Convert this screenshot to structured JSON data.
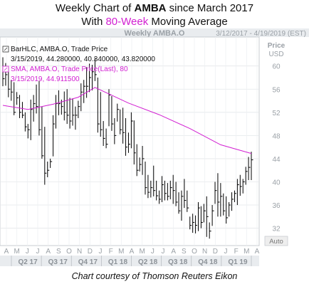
{
  "title": {
    "line1_prefix": "Weekly Chart of ",
    "ticker": "AMBA",
    "line1_suffix": " since March 2017",
    "line2_prefix": "With ",
    "line2_accent": "80-Week",
    "line2_suffix": " Moving Average"
  },
  "caption": "Chart courtesy of Thomson Reuters Eikon",
  "colors": {
    "accent": "#d21fd2",
    "bars": "#000000",
    "panel_header": "#e9ecef",
    "label_text": "#9aa0a6"
  },
  "chart_data": {
    "type": "line",
    "header_left": "Weekly AMBA.O",
    "header_right": "3/12/2017 - 4/19/2019 (EST)",
    "ylabel": [
      "Price",
      "USD"
    ],
    "ylim": [
      29,
      65
    ],
    "y_ticks": [
      32,
      36,
      40,
      44,
      48,
      52,
      56,
      60
    ],
    "auto_label": "Auto",
    "legend": [
      {
        "name": "BarHLC, AMBA.O, Trade Price",
        "values": "3/15/2019, 44.280000, 40.340000, 43.820000",
        "color": "#000000"
      },
      {
        "name": "SMA, AMBA.O, Trade Price(Last), 80",
        "values": "3/15/2019, 44.911500",
        "color": "#d21fd2"
      }
    ],
    "months": [
      "A",
      "M",
      "J",
      "J",
      "A",
      "S",
      "O",
      "N",
      "D",
      "J",
      "F",
      "M",
      "A",
      "M",
      "J",
      "J",
      "A",
      "S",
      "O",
      "N",
      "D",
      "J",
      "F",
      "M",
      "A"
    ],
    "quarters": [
      "Q2 17",
      "Q3 17",
      "Q4 17",
      "Q1 18",
      "Q2 18",
      "Q3 18",
      "Q4 18",
      "Q1 19"
    ],
    "hlc_series": {
      "name": "BarHLC, AMBA.O, Trade Price",
      "high": [
        61.5,
        60.5,
        59.8,
        57.6,
        57.2,
        55.5,
        55.0,
        53.8,
        52.0,
        50.0,
        54.2,
        55.0,
        56.8,
        57.4,
        53.0,
        49.5,
        43.5,
        44.0,
        51.5,
        55.0,
        55.8,
        54.2,
        55.6,
        56.0,
        54.5,
        54.4,
        53.0,
        54.0,
        57.0,
        57.6,
        59.8,
        60.4,
        60.2,
        61.4,
        58.0,
        55.5,
        50.5,
        49.2,
        56.0,
        54.8,
        51.0,
        53.5,
        52.5,
        52.8,
        51.0,
        48.5,
        52.0,
        50.6,
        46.5,
        44.2,
        46.2,
        43.5,
        41.2,
        40.2,
        42.8,
        40.2,
        38.5,
        41.0,
        40.2,
        39.8,
        40.2,
        41.2,
        40.0,
        38.2,
        38.5,
        40.5,
        38.5,
        34.0,
        34.5,
        34.2,
        36.5,
        35.8,
        36.2,
        37.5,
        33.0,
        36.0,
        40.0,
        41.5,
        39.8,
        38.0,
        37.5,
        36.5,
        38.2,
        38.5,
        40.5,
        41.2,
        40.5,
        42.6,
        44.3,
        45.2
      ],
      "low": [
        56.5,
        56.6,
        54.6,
        54.0,
        51.5,
        53.3,
        51.0,
        51.0,
        48.7,
        47.5,
        47.2,
        50.4,
        51.8,
        48.0,
        44.0,
        39.5,
        40.8,
        42.4,
        44.4,
        49.2,
        51.5,
        51.6,
        50.6,
        50.0,
        49.2,
        49.7,
        49.0,
        51.0,
        52.2,
        53.6,
        54.5,
        55.5,
        55.8,
        57.4,
        48.5,
        47.8,
        46.2,
        45.8,
        49.6,
        48.8,
        46.5,
        50.4,
        48.2,
        46.6,
        44.5,
        45.0,
        45.8,
        43.0,
        41.0,
        41.8,
        41.2,
        37.8,
        37.2,
        37.3,
        37.5,
        36.8,
        36.2,
        36.5,
        36.8,
        36.8,
        37.0,
        36.2,
        35.8,
        34.5,
        33.3,
        35.5,
        34.8,
        31.8,
        31.2,
        31.1,
        31.5,
        32.0,
        33.0,
        30.5,
        30.2,
        32.4,
        36.2,
        34.0,
        34.0,
        34.2,
        32.8,
        34.0,
        35.0,
        36.5,
        36.0,
        37.6,
        38.0,
        39.5,
        40.3,
        40.3
      ],
      "close": [
        57.8,
        58.5,
        56.0,
        55.5,
        52.0,
        54.5,
        52.0,
        51.5,
        49.5,
        49.0,
        52.5,
        53.5,
        53.0,
        49.0,
        44.5,
        41.5,
        42.0,
        43.5,
        50.0,
        53.5,
        53.5,
        53.0,
        52.0,
        51.5,
        50.5,
        51.5,
        51.5,
        53.0,
        55.5,
        56.5,
        56.5,
        58.0,
        59.0,
        58.5,
        50.0,
        49.0,
        47.5,
        46.5,
        55.0,
        50.0,
        48.0,
        52.5,
        49.0,
        48.5,
        46.0,
        46.5,
        50.5,
        45.0,
        42.0,
        43.0,
        44.0,
        39.0,
        38.2,
        39.0,
        38.5,
        37.6,
        37.0,
        39.5,
        38.0,
        37.5,
        39.0,
        38.5,
        36.5,
        35.0,
        37.5,
        36.8,
        35.5,
        32.5,
        33.0,
        32.5,
        35.5,
        33.0,
        35.0,
        34.0,
        31.5,
        35.0,
        38.5,
        36.5,
        37.5,
        35.0,
        33.8,
        36.0,
        37.0,
        38.0,
        39.5,
        39.2,
        40.0,
        41.8,
        42.5,
        43.8
      ]
    },
    "sma_series": {
      "name": "SMA, AMBA.O, Trade Price(Last), 80",
      "x": [
        0,
        9,
        18,
        27,
        33,
        45,
        56,
        67,
        78,
        89
      ],
      "values": [
        53.2,
        52.5,
        53.4,
        54.6,
        56.3,
        53.6,
        51.6,
        49.2,
        46.4,
        44.9
      ]
    }
  }
}
